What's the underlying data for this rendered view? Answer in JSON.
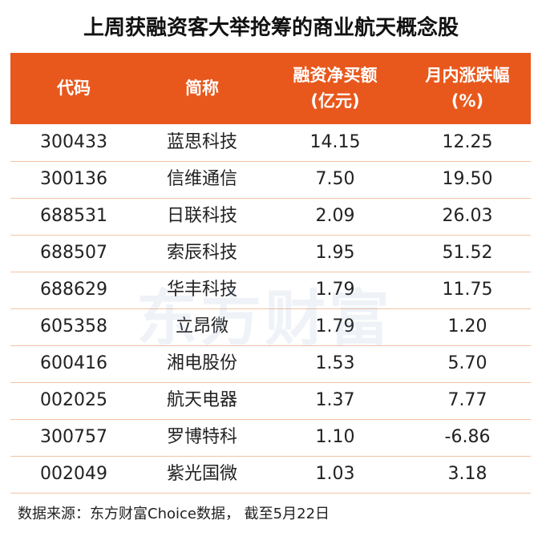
{
  "title": "上周获融资客大举抢筹的商业航天概念股",
  "table": {
    "header": [
      [
        "代码"
      ],
      [
        "简称"
      ],
      [
        "融资净买额",
        "(亿元)"
      ],
      [
        "月内涨跌幅",
        "(%)"
      ]
    ],
    "rows": [
      [
        "300433",
        "蓝思科技",
        "14.15",
        "12.25"
      ],
      [
        "300136",
        "信维通信",
        "7.50",
        "19.50"
      ],
      [
        "688531",
        "日联科技",
        "2.09",
        "26.03"
      ],
      [
        "688507",
        "索辰科技",
        "1.95",
        "51.52"
      ],
      [
        "688629",
        "华丰科技",
        "1.79",
        "11.75"
      ],
      [
        "605358",
        "立昂微",
        "1.79",
        "1.20"
      ],
      [
        "600416",
        "湘电股份",
        "1.53",
        "5.70"
      ],
      [
        "002025",
        "航天电器",
        "1.37",
        "7.77"
      ],
      [
        "300757",
        "罗博特科",
        "1.10",
        "-6.86"
      ],
      [
        "002049",
        "紫光国微",
        "1.03",
        "3.18"
      ]
    ]
  },
  "watermark": "东方财富",
  "footer": "数据来源：东方财富Choice数据， 截至5月22日"
}
